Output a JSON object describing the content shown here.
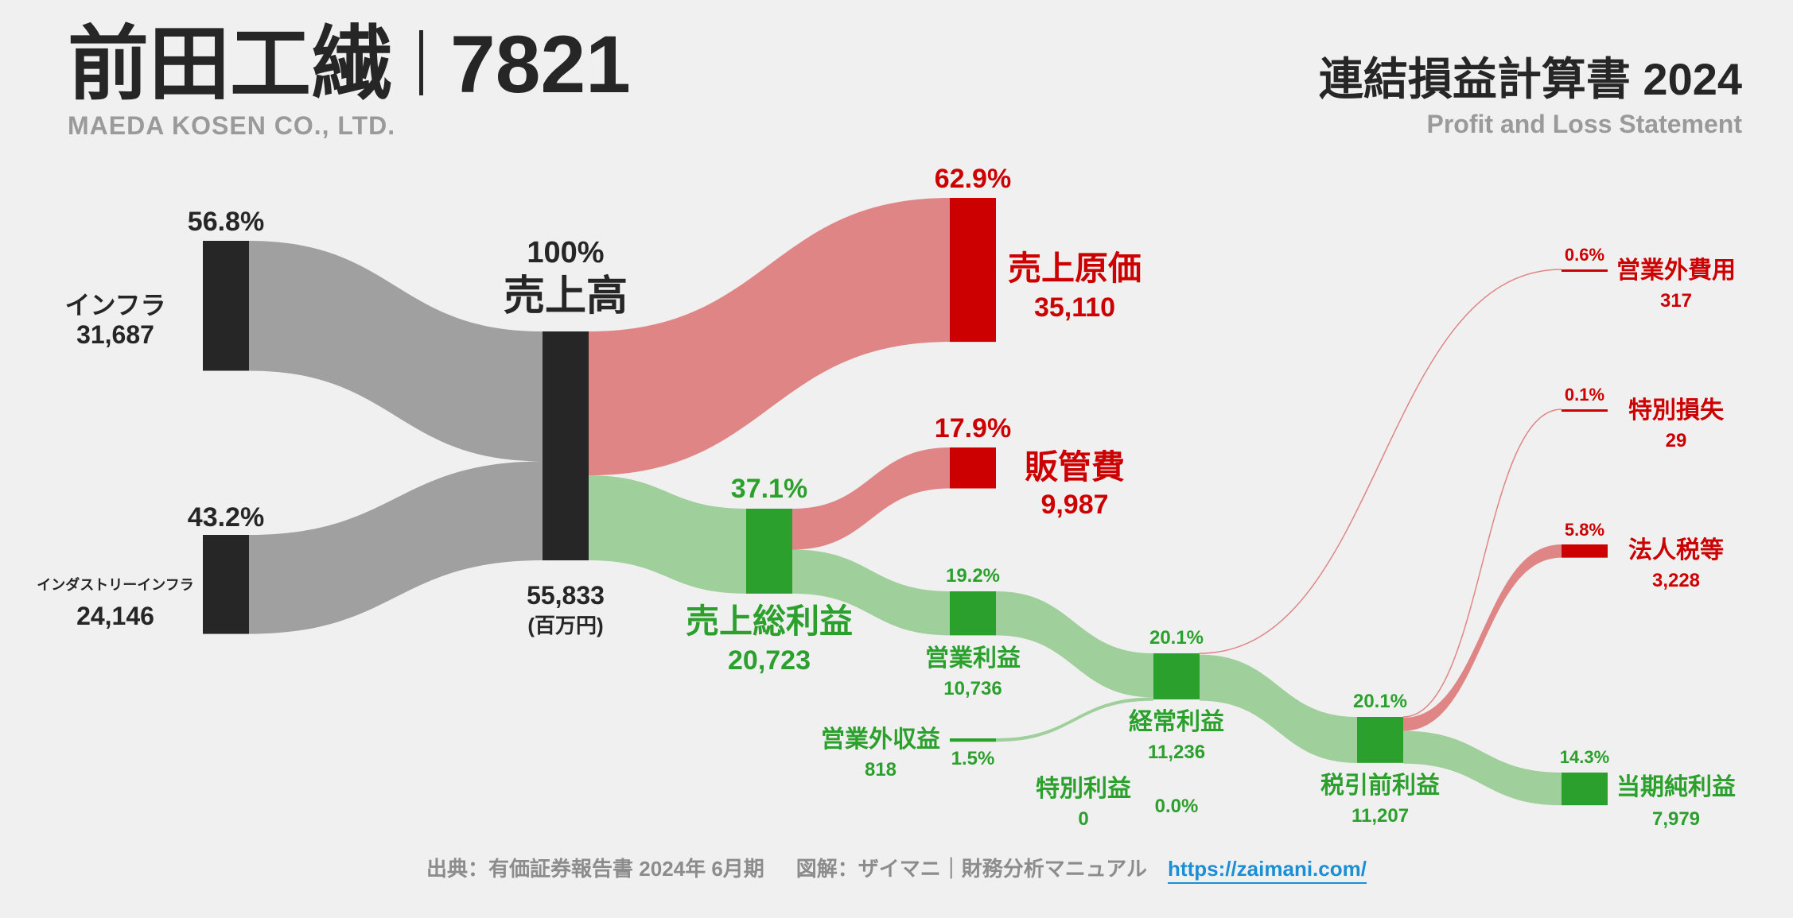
{
  "header": {
    "company_name": "前田工繊",
    "ticker": "7821",
    "company_name_en": "MAEDA KOSEN CO., LTD.",
    "statement_title": "連結損益計算書 2024",
    "statement_subtitle": "Profit and Loss Statement"
  },
  "footer": {
    "source": "出典：有価証券報告書 2024年 6月期",
    "credit": "図解：ザイマニ｜財務分析マニュアル",
    "link": "https://zaimani.com/"
  },
  "colors": {
    "neutral": "#262626",
    "neutral_flow": "#a0a0a0",
    "cost": "#cc0000",
    "cost_flow": "#e08585",
    "profit": "#2ca02c",
    "profit_flow": "#9fcf9a"
  },
  "chart_data": {
    "type": "sankey",
    "unit": "(百万円)",
    "nodes": [
      {
        "id": "infra",
        "name": "インフラ",
        "value": "31,687",
        "pct": "56.8%",
        "kind": "neutral"
      },
      {
        "id": "industry",
        "name": "インダストリーインフラ",
        "value": "24,146",
        "pct": "43.2%",
        "kind": "neutral"
      },
      {
        "id": "revenue",
        "name": "売上高",
        "value": "55,833",
        "pct": "100%",
        "kind": "neutral"
      },
      {
        "id": "cogs",
        "name": "売上原価",
        "value": "35,110",
        "pct": "62.9%",
        "kind": "cost"
      },
      {
        "id": "gross",
        "name": "売上総利益",
        "value": "20,723",
        "pct": "37.1%",
        "kind": "profit"
      },
      {
        "id": "sga",
        "name": "販管費",
        "value": "9,987",
        "pct": "17.9%",
        "kind": "cost"
      },
      {
        "id": "op",
        "name": "営業利益",
        "value": "10,736",
        "pct": "19.2%",
        "kind": "profit"
      },
      {
        "id": "nonop_inc",
        "name": "営業外収益",
        "value": "818",
        "pct": "1.5%",
        "kind": "profit"
      },
      {
        "id": "nonop_exp",
        "name": "営業外費用",
        "value": "317",
        "pct": "0.6%",
        "kind": "cost"
      },
      {
        "id": "ordinary",
        "name": "経常利益",
        "value": "11,236",
        "pct": "20.1%",
        "kind": "profit"
      },
      {
        "id": "special_gain",
        "name": "特別利益",
        "value": "0",
        "pct": "0.0%",
        "kind": "profit"
      },
      {
        "id": "special_loss",
        "name": "特別損失",
        "value": "29",
        "pct": "0.1%",
        "kind": "cost"
      },
      {
        "id": "pretax",
        "name": "税引前利益",
        "value": "11,207",
        "pct": "20.1%",
        "kind": "profit"
      },
      {
        "id": "tax",
        "name": "法人税等",
        "value": "3,228",
        "pct": "5.8%",
        "kind": "cost"
      },
      {
        "id": "net",
        "name": "当期純利益",
        "value": "7,979",
        "pct": "14.3%",
        "kind": "profit"
      }
    ],
    "links": [
      {
        "source": "infra",
        "target": "revenue",
        "value": 31687
      },
      {
        "source": "industry",
        "target": "revenue",
        "value": 24146
      },
      {
        "source": "revenue",
        "target": "cogs",
        "value": 35110
      },
      {
        "source": "revenue",
        "target": "gross",
        "value": 20723
      },
      {
        "source": "gross",
        "target": "sga",
        "value": 9987
      },
      {
        "source": "gross",
        "target": "op",
        "value": 10736
      },
      {
        "source": "op",
        "target": "ordinary",
        "value": 10736
      },
      {
        "source": "nonop_inc",
        "target": "ordinary",
        "value": 818
      },
      {
        "source": "ordinary",
        "target": "nonop_exp",
        "value": 317
      },
      {
        "source": "ordinary",
        "target": "pretax",
        "value": 11236
      },
      {
        "source": "special_gain",
        "target": "pretax",
        "value": 0
      },
      {
        "source": "pretax",
        "target": "special_loss",
        "value": 29
      },
      {
        "source": "pretax",
        "target": "tax",
        "value": 3228
      },
      {
        "source": "pretax",
        "target": "net",
        "value": 7979
      }
    ]
  }
}
